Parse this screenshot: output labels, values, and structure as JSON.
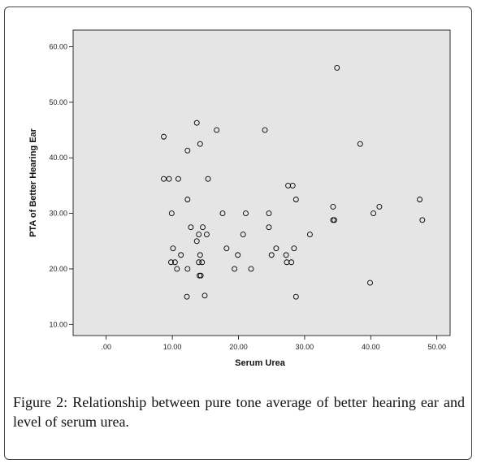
{
  "caption": {
    "figure_label": "Figure 2:",
    "text": "Relationship between pure tone average of better hearing ear and level of serum urea."
  },
  "colors": {
    "plot_bg": "#e5e5e5",
    "marker": "#000000"
  },
  "chart_data": {
    "type": "scatter",
    "title": "",
    "xlabel": "Serum Urea",
    "ylabel": "PTA of Better Hearing Ear",
    "xlim": [
      -5,
      52
    ],
    "ylim": [
      8,
      63
    ],
    "xticks": [
      0,
      10,
      20,
      30,
      40,
      50
    ],
    "xtick_labels": [
      ".00",
      "10.00",
      "20.00",
      "30.00",
      "40.00",
      "50.00"
    ],
    "yticks": [
      10,
      20,
      30,
      40,
      50,
      60
    ],
    "ytick_labels": [
      "10.00",
      "20.00",
      "30.00",
      "40.00",
      "50.00",
      "60.00"
    ],
    "grid": false,
    "points": [
      [
        8.7,
        43.8
      ],
      [
        8.7,
        36.2
      ],
      [
        9.5,
        36.2
      ],
      [
        9.9,
        30.0
      ],
      [
        10.1,
        23.7
      ],
      [
        9.8,
        21.2
      ],
      [
        10.4,
        21.2
      ],
      [
        10.7,
        20.0
      ],
      [
        10.9,
        36.2
      ],
      [
        11.3,
        22.5
      ],
      [
        12.3,
        41.3
      ],
      [
        12.3,
        32.5
      ],
      [
        12.3,
        20.0
      ],
      [
        12.2,
        15.0
      ],
      [
        12.8,
        27.5
      ],
      [
        13.7,
        46.3
      ],
      [
        13.7,
        25.0
      ],
      [
        14.0,
        26.2
      ],
      [
        14.0,
        21.2
      ],
      [
        14.2,
        42.5
      ],
      [
        14.2,
        22.5
      ],
      [
        14.1,
        18.8
      ],
      [
        14.3,
        18.8
      ],
      [
        14.5,
        21.2
      ],
      [
        14.6,
        27.5
      ],
      [
        14.9,
        15.2
      ],
      [
        15.2,
        26.2
      ],
      [
        15.4,
        36.2
      ],
      [
        16.7,
        45.0
      ],
      [
        17.6,
        30.0
      ],
      [
        18.2,
        23.7
      ],
      [
        19.4,
        20.0
      ],
      [
        19.9,
        22.5
      ],
      [
        20.7,
        26.2
      ],
      [
        21.1,
        30.0
      ],
      [
        21.9,
        20.0
      ],
      [
        24.0,
        45.0
      ],
      [
        24.6,
        30.0
      ],
      [
        24.6,
        27.5
      ],
      [
        25.0,
        22.5
      ],
      [
        25.7,
        23.7
      ],
      [
        27.2,
        22.5
      ],
      [
        27.3,
        21.2
      ],
      [
        27.5,
        35.0
      ],
      [
        28.0,
        21.2
      ],
      [
        28.2,
        35.0
      ],
      [
        28.4,
        23.7
      ],
      [
        28.7,
        32.5
      ],
      [
        28.7,
        15.0
      ],
      [
        30.8,
        26.2
      ],
      [
        34.3,
        31.2
      ],
      [
        34.3,
        28.8
      ],
      [
        34.5,
        28.8
      ],
      [
        34.9,
        56.2
      ],
      [
        38.4,
        42.5
      ],
      [
        39.9,
        17.5
      ],
      [
        40.4,
        30.0
      ],
      [
        41.3,
        31.2
      ],
      [
        47.4,
        32.5
      ],
      [
        47.8,
        28.8
      ]
    ]
  }
}
